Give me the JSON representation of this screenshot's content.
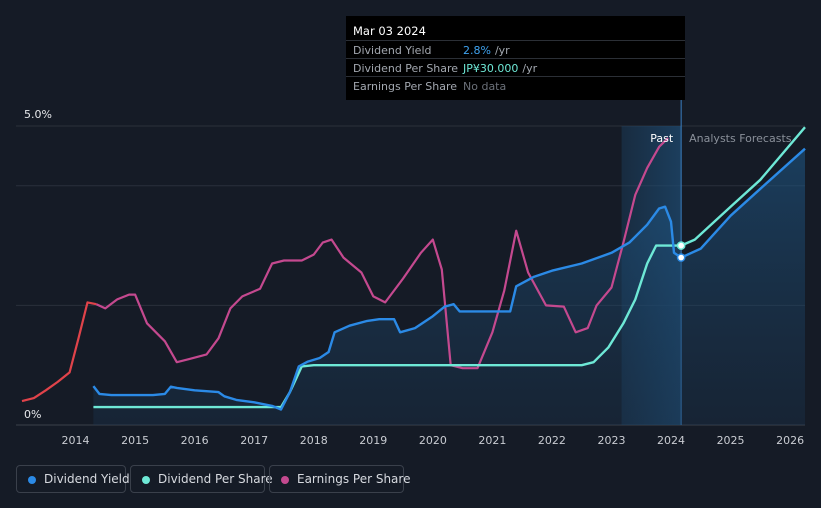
{
  "tooltip": {
    "date": "Mar 03 2024",
    "rows": [
      {
        "label": "Dividend Yield",
        "value": "2.8%",
        "unit": "/yr",
        "color": "#3fa3f0"
      },
      {
        "label": "Dividend Per Share",
        "value": "JP¥30.000",
        "unit": "/yr",
        "color": "#6ee8d6"
      },
      {
        "label": "Earnings Per Share",
        "value": "No data",
        "unit": "",
        "color": "#6b7079"
      }
    ]
  },
  "legend": [
    {
      "label": "Dividend Yield",
      "color": "#2b8ae6"
    },
    {
      "label": "Dividend Per Share",
      "color": "#6ee8d6"
    },
    {
      "label": "Earnings Per Share",
      "color": "#c4498f"
    }
  ],
  "chart_data": {
    "type": "line",
    "y_tick_labels": [
      "5.0%",
      "0%"
    ],
    "ylim": [
      0,
      5.0
    ],
    "xlim": [
      2013.0,
      2026.25
    ],
    "x_tick_labels": [
      "2014",
      "2015",
      "2016",
      "2017",
      "2018",
      "2019",
      "2020",
      "2021",
      "2022",
      "2023",
      "2024",
      "2025",
      "2026"
    ],
    "region_labels": {
      "past": "Past",
      "forecast": "Analysts Forecasts"
    },
    "past_forecast_divider": 2024.17,
    "forecast_band_start": 2023.17,
    "colors": {
      "yield": "#2b8ae6",
      "dps": "#6ee8d6",
      "eps": "#c4498f",
      "eps_negative": "#e0434a"
    },
    "series": [
      {
        "key": "yield",
        "name": "Dividend Yield",
        "points": [
          [
            2014.3,
            0.65
          ],
          [
            2014.4,
            0.52
          ],
          [
            2014.6,
            0.5
          ],
          [
            2015.0,
            0.5
          ],
          [
            2015.3,
            0.5
          ],
          [
            2015.5,
            0.52
          ],
          [
            2015.6,
            0.64
          ],
          [
            2015.7,
            0.62
          ],
          [
            2016.0,
            0.58
          ],
          [
            2016.4,
            0.55
          ],
          [
            2016.5,
            0.48
          ],
          [
            2016.7,
            0.42
          ],
          [
            2017.0,
            0.38
          ],
          [
            2017.3,
            0.32
          ],
          [
            2017.45,
            0.26
          ],
          [
            2017.6,
            0.55
          ],
          [
            2017.75,
            0.98
          ],
          [
            2017.9,
            1.06
          ],
          [
            2018.1,
            1.12
          ],
          [
            2018.25,
            1.22
          ],
          [
            2018.35,
            1.55
          ],
          [
            2018.6,
            1.66
          ],
          [
            2018.9,
            1.74
          ],
          [
            2019.1,
            1.77
          ],
          [
            2019.35,
            1.77
          ],
          [
            2019.45,
            1.55
          ],
          [
            2019.7,
            1.62
          ],
          [
            2020.0,
            1.82
          ],
          [
            2020.2,
            1.98
          ],
          [
            2020.35,
            2.02
          ],
          [
            2020.45,
            1.9
          ],
          [
            2020.6,
            1.9
          ],
          [
            2021.0,
            1.9
          ],
          [
            2021.3,
            1.9
          ],
          [
            2021.4,
            2.32
          ],
          [
            2021.7,
            2.48
          ],
          [
            2022.0,
            2.58
          ],
          [
            2022.5,
            2.7
          ],
          [
            2023.0,
            2.88
          ],
          [
            2023.3,
            3.05
          ],
          [
            2023.6,
            3.35
          ],
          [
            2023.8,
            3.62
          ],
          [
            2023.9,
            3.65
          ],
          [
            2024.0,
            3.4
          ],
          [
            2024.05,
            2.88
          ],
          [
            2024.17,
            2.8
          ],
          [
            2024.5,
            2.95
          ],
          [
            2025.0,
            3.5
          ],
          [
            2025.5,
            3.95
          ],
          [
            2026.25,
            4.62
          ]
        ]
      },
      {
        "key": "dps",
        "name": "Dividend Per Share",
        "points": [
          [
            2014.3,
            0.3
          ],
          [
            2017.45,
            0.3
          ],
          [
            2017.6,
            0.55
          ],
          [
            2017.8,
            0.98
          ],
          [
            2018.0,
            1.0
          ],
          [
            2022.5,
            1.0
          ],
          [
            2022.7,
            1.05
          ],
          [
            2022.95,
            1.3
          ],
          [
            2023.2,
            1.7
          ],
          [
            2023.4,
            2.1
          ],
          [
            2023.6,
            2.7
          ],
          [
            2023.75,
            3.0
          ],
          [
            2024.17,
            3.0
          ],
          [
            2024.4,
            3.1
          ],
          [
            2025.0,
            3.65
          ],
          [
            2025.5,
            4.1
          ],
          [
            2026.25,
            4.98
          ]
        ]
      },
      {
        "key": "eps",
        "name": "Earnings Per Share",
        "points": [
          [
            2013.1,
            0.4
          ],
          [
            2013.3,
            0.45
          ],
          [
            2013.5,
            0.58
          ],
          [
            2013.7,
            0.72
          ],
          [
            2013.9,
            0.88
          ],
          [
            2014.05,
            1.45
          ],
          [
            2014.2,
            2.05
          ],
          [
            2014.35,
            2.02
          ],
          [
            2014.5,
            1.95
          ],
          [
            2014.7,
            2.1
          ],
          [
            2014.9,
            2.18
          ],
          [
            2015.0,
            2.18
          ],
          [
            2015.2,
            1.7
          ],
          [
            2015.5,
            1.4
          ],
          [
            2015.7,
            1.05
          ],
          [
            2015.9,
            1.1
          ],
          [
            2016.2,
            1.18
          ],
          [
            2016.4,
            1.45
          ],
          [
            2016.6,
            1.95
          ],
          [
            2016.8,
            2.15
          ],
          [
            2017.1,
            2.28
          ],
          [
            2017.3,
            2.7
          ],
          [
            2017.5,
            2.75
          ],
          [
            2017.8,
            2.75
          ],
          [
            2018.0,
            2.85
          ],
          [
            2018.15,
            3.05
          ],
          [
            2018.3,
            3.1
          ],
          [
            2018.5,
            2.8
          ],
          [
            2018.8,
            2.55
          ],
          [
            2019.0,
            2.15
          ],
          [
            2019.2,
            2.05
          ],
          [
            2019.5,
            2.45
          ],
          [
            2019.8,
            2.88
          ],
          [
            2020.0,
            3.1
          ],
          [
            2020.15,
            2.6
          ],
          [
            2020.3,
            1.0
          ],
          [
            2020.5,
            0.95
          ],
          [
            2020.75,
            0.95
          ],
          [
            2021.0,
            1.55
          ],
          [
            2021.2,
            2.25
          ],
          [
            2021.4,
            3.25
          ],
          [
            2021.6,
            2.55
          ],
          [
            2021.9,
            2.0
          ],
          [
            2022.2,
            1.98
          ],
          [
            2022.4,
            1.55
          ],
          [
            2022.6,
            1.62
          ],
          [
            2022.75,
            2.0
          ],
          [
            2023.0,
            2.3
          ],
          [
            2023.2,
            3.05
          ],
          [
            2023.4,
            3.85
          ],
          [
            2023.6,
            4.3
          ],
          [
            2023.8,
            4.65
          ],
          [
            2023.95,
            4.8
          ]
        ]
      }
    ]
  }
}
